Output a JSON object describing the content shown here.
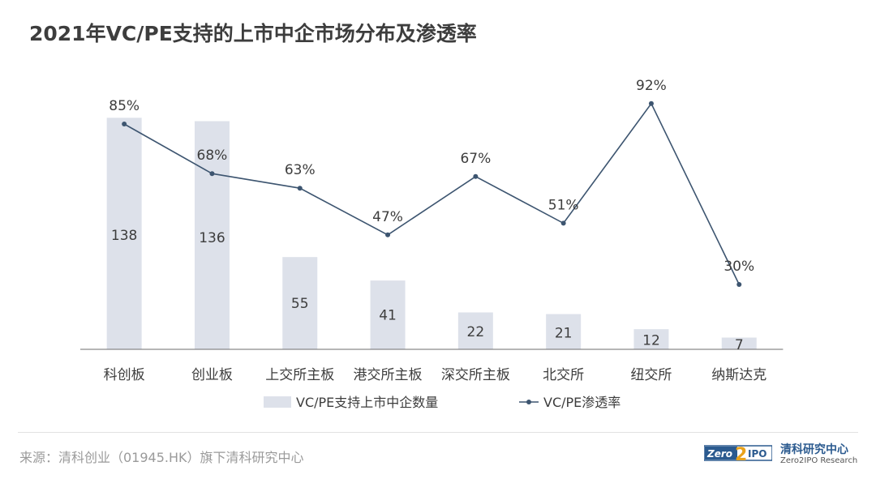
{
  "title": "2021年VC/PE支持的上市中企市场分布及渗透率",
  "colors": {
    "bar": "#dde1ea",
    "line": "#3d5570",
    "text": "#3d3d3d",
    "axis": "#6d6d6d"
  },
  "chart_data": {
    "type": "bar",
    "categories": [
      "科创板",
      "创业板",
      "上交所主板",
      "港交所主板",
      "深交所主板",
      "北交所",
      "纽交所",
      "纳斯达克"
    ],
    "series": [
      {
        "name": "VC/PE支持上市中企数量",
        "type": "bar",
        "values": [
          138,
          136,
          55,
          41,
          22,
          21,
          12,
          7
        ]
      },
      {
        "name": "VC/PE渗透率",
        "type": "line",
        "values": [
          85,
          68,
          63,
          47,
          67,
          51,
          92,
          30
        ],
        "labels": [
          "85%",
          "68%",
          "63%",
          "47%",
          "67%",
          "51%",
          "92%",
          "30%"
        ],
        "unit": "%"
      }
    ],
    "legend": "bottom",
    "grid": false
  },
  "footer": {
    "source": "来源：清科创业（01945.HK）旗下清科研究中心",
    "logo_text": "Zero2IPO",
    "brand_cn": "清科研究中心",
    "brand_en": "Zero2IPO Research"
  }
}
